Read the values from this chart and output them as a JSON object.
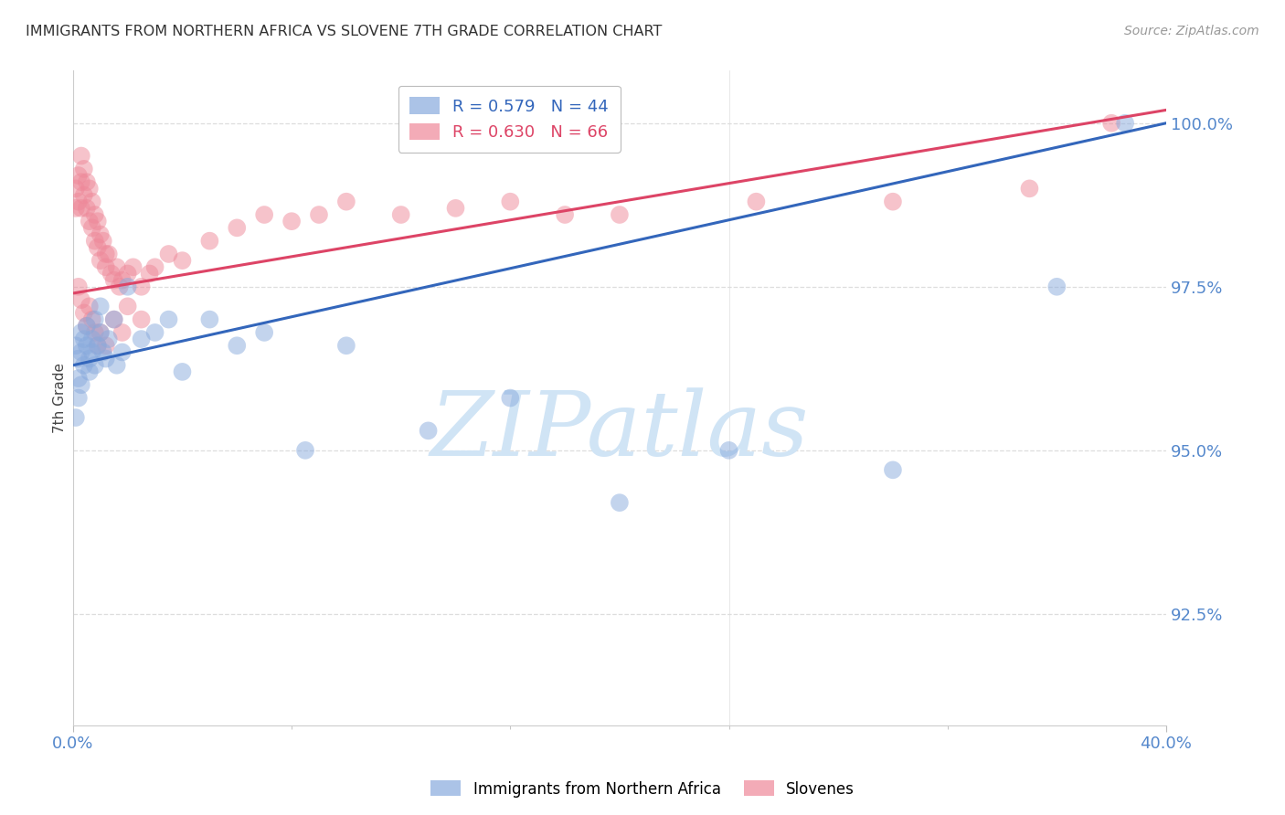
{
  "title": "IMMIGRANTS FROM NORTHERN AFRICA VS SLOVENE 7TH GRADE CORRELATION CHART",
  "source": "Source: ZipAtlas.com",
  "ylabel": "7th Grade",
  "x_min": 0.0,
  "x_max": 0.4,
  "y_min": 0.908,
  "y_max": 1.008,
  "y_ticks": [
    0.925,
    0.95,
    0.975,
    1.0
  ],
  "y_tick_labels": [
    "92.5%",
    "95.0%",
    "97.5%",
    "100.0%"
  ],
  "blue_color": "#88AADD",
  "pink_color": "#EE8899",
  "blue_line_color": "#3366BB",
  "pink_line_color": "#DD4466",
  "legend_blue_label": "R = 0.579   N = 44",
  "legend_pink_label": "R = 0.630   N = 66",
  "watermark": "ZIPatlas",
  "watermark_color": "#D0E4F5",
  "grid_color": "#DDDDDD",
  "tick_color": "#5588CC",
  "blue_line_x0": 0.0,
  "blue_line_x1": 0.4,
  "blue_line_y0": 0.963,
  "blue_line_y1": 1.0,
  "pink_line_x0": 0.0,
  "pink_line_x1": 0.4,
  "pink_line_y0": 0.974,
  "pink_line_y1": 1.002,
  "blue_x": [
    0.001,
    0.002,
    0.002,
    0.003,
    0.003,
    0.004,
    0.004,
    0.005,
    0.005,
    0.006,
    0.006,
    0.007,
    0.007,
    0.008,
    0.008,
    0.009,
    0.01,
    0.01,
    0.011,
    0.012,
    0.013,
    0.015,
    0.016,
    0.018,
    0.02,
    0.025,
    0.03,
    0.035,
    0.04,
    0.05,
    0.06,
    0.07,
    0.085,
    0.1,
    0.13,
    0.16,
    0.2,
    0.24,
    0.3,
    0.36,
    0.385,
    0.001,
    0.002,
    0.003
  ],
  "blue_y": [
    0.966,
    0.964,
    0.961,
    0.965,
    0.968,
    0.967,
    0.963,
    0.969,
    0.966,
    0.964,
    0.962,
    0.967,
    0.965,
    0.963,
    0.97,
    0.966,
    0.968,
    0.972,
    0.965,
    0.964,
    0.967,
    0.97,
    0.963,
    0.965,
    0.975,
    0.967,
    0.968,
    0.97,
    0.962,
    0.97,
    0.966,
    0.968,
    0.95,
    0.966,
    0.953,
    0.958,
    0.942,
    0.95,
    0.947,
    0.975,
    1.0,
    0.955,
    0.958,
    0.96
  ],
  "pink_x": [
    0.001,
    0.001,
    0.002,
    0.002,
    0.003,
    0.003,
    0.003,
    0.004,
    0.004,
    0.005,
    0.005,
    0.006,
    0.006,
    0.007,
    0.007,
    0.008,
    0.008,
    0.009,
    0.009,
    0.01,
    0.01,
    0.011,
    0.012,
    0.012,
    0.013,
    0.014,
    0.015,
    0.016,
    0.017,
    0.018,
    0.02,
    0.022,
    0.025,
    0.028,
    0.03,
    0.035,
    0.04,
    0.05,
    0.06,
    0.07,
    0.08,
    0.09,
    0.1,
    0.12,
    0.14,
    0.16,
    0.18,
    0.2,
    0.25,
    0.3,
    0.35,
    0.38,
    0.002,
    0.003,
    0.004,
    0.005,
    0.006,
    0.007,
    0.008,
    0.009,
    0.01,
    0.012,
    0.015,
    0.018,
    0.02,
    0.025
  ],
  "pink_y": [
    0.99,
    0.987,
    0.992,
    0.988,
    0.995,
    0.991,
    0.987,
    0.993,
    0.989,
    0.991,
    0.987,
    0.99,
    0.985,
    0.988,
    0.984,
    0.986,
    0.982,
    0.985,
    0.981,
    0.983,
    0.979,
    0.982,
    0.98,
    0.978,
    0.98,
    0.977,
    0.976,
    0.978,
    0.975,
    0.976,
    0.977,
    0.978,
    0.975,
    0.977,
    0.978,
    0.98,
    0.979,
    0.982,
    0.984,
    0.986,
    0.985,
    0.986,
    0.988,
    0.986,
    0.987,
    0.988,
    0.986,
    0.986,
    0.988,
    0.988,
    0.99,
    1.0,
    0.975,
    0.973,
    0.971,
    0.969,
    0.972,
    0.97,
    0.968,
    0.966,
    0.968,
    0.966,
    0.97,
    0.968,
    0.972,
    0.97
  ]
}
